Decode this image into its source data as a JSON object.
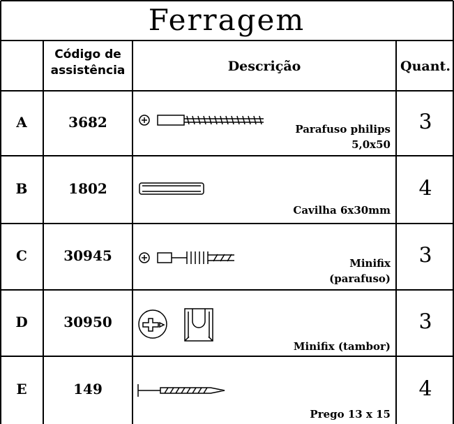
{
  "title": "Ferragem",
  "header": {
    "code": [
      "Código de",
      "assistência"
    ],
    "description": "Descrição",
    "quantity": "Quant."
  },
  "rows": [
    {
      "id": "A",
      "code": "3682",
      "description": [
        "Parafuso philips",
        "5,0x50"
      ],
      "quantity": 3
    },
    {
      "id": "B",
      "code": "1802",
      "description": [
        "Cavilha 6x30mm"
      ],
      "quantity": 4
    },
    {
      "id": "C",
      "code": "30945",
      "description": [
        "Minifix",
        "(parafuso)"
      ],
      "quantity": 3
    },
    {
      "id": "D",
      "code": "30950",
      "description": [
        "Minifix (tambor)"
      ],
      "quantity": 3
    },
    {
      "id": "E",
      "code": "149",
      "description": [
        "Prego 13 x 15"
      ],
      "quantity": 4
    }
  ]
}
